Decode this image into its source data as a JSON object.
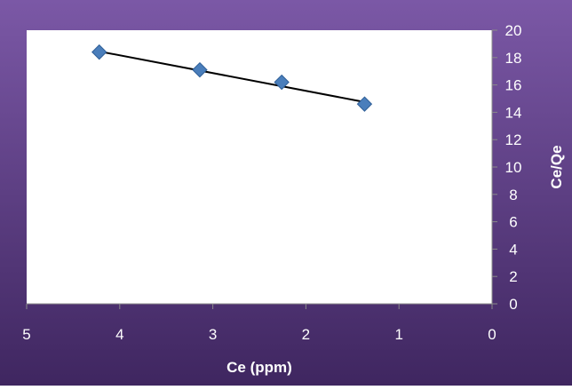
{
  "colors": {
    "background_top": "#7b58a6",
    "background_bottom": "#3f2660",
    "plot_area": "#ffffff",
    "marker": "#4a7ebb",
    "marker_edge": "#2f5f98",
    "trendline": "#000000",
    "axis_text": "#ffffff"
  },
  "chart_data": {
    "type": "scatter",
    "title": "",
    "xlabel": "Ce (ppm)",
    "ylabel": "Ce/Qe",
    "xlim": [
      0,
      5
    ],
    "ylim": [
      0,
      20
    ],
    "x_reversed": true,
    "y_axis_position": "right",
    "x_ticks": [
      "5",
      "4",
      "3",
      "2",
      "1",
      "0"
    ],
    "y_ticks": [
      "0",
      "2",
      "4",
      "6",
      "8",
      "10",
      "12",
      "14",
      "16",
      "18",
      "20"
    ],
    "grid": false,
    "legend": "none",
    "marker": "diamond",
    "points": [
      {
        "x": 4.22,
        "y": 18.4
      },
      {
        "x": 3.14,
        "y": 17.1
      },
      {
        "x": 2.26,
        "y": 16.2
      },
      {
        "x": 1.37,
        "y": 14.6
      }
    ],
    "trendline": {
      "type": "linear",
      "x": [
        4.22,
        1.37
      ],
      "y": [
        18.45,
        14.75
      ]
    }
  }
}
